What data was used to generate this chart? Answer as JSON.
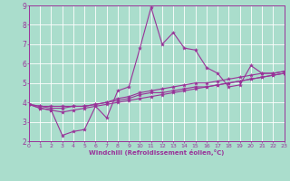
{
  "xlabel": "Windchill (Refroidissement éolien,°C)",
  "background_color": "#aaddcc",
  "line_color": "#993399",
  "grid_color": "#ffffff",
  "xmin": 0,
  "xmax": 23,
  "ymin": 2,
  "ymax": 9,
  "x_values": [
    0,
    1,
    2,
    3,
    4,
    5,
    6,
    7,
    8,
    9,
    10,
    11,
    12,
    13,
    14,
    15,
    16,
    17,
    18,
    19,
    20,
    21,
    22,
    23
  ],
  "series": [
    [
      3.9,
      3.7,
      3.6,
      2.3,
      2.5,
      2.6,
      3.8,
      3.2,
      4.6,
      4.8,
      6.8,
      8.9,
      7.0,
      7.6,
      6.8,
      6.7,
      5.8,
      5.5,
      4.8,
      4.9,
      5.9,
      5.5,
      5.5,
      5.6
    ],
    [
      3.9,
      3.7,
      3.6,
      3.5,
      3.6,
      3.7,
      3.8,
      3.9,
      4.0,
      4.1,
      4.2,
      4.3,
      4.4,
      4.5,
      4.6,
      4.7,
      4.8,
      4.9,
      5.0,
      5.1,
      5.2,
      5.3,
      5.4,
      5.5
    ],
    [
      3.9,
      3.8,
      3.8,
      3.8,
      3.8,
      3.8,
      3.9,
      4.0,
      4.1,
      4.2,
      4.4,
      4.5,
      4.5,
      4.6,
      4.7,
      4.8,
      4.8,
      4.9,
      5.0,
      5.1,
      5.2,
      5.3,
      5.4,
      5.5
    ],
    [
      3.9,
      3.8,
      3.7,
      3.7,
      3.8,
      3.8,
      3.9,
      4.0,
      4.2,
      4.3,
      4.5,
      4.6,
      4.7,
      4.8,
      4.9,
      5.0,
      5.0,
      5.1,
      5.2,
      5.3,
      5.4,
      5.5,
      5.5,
      5.6
    ]
  ]
}
